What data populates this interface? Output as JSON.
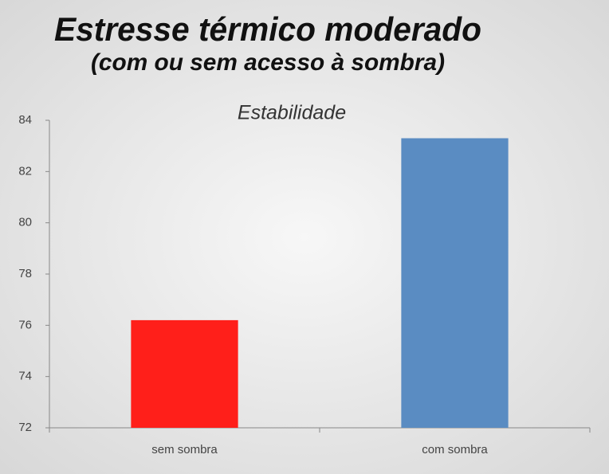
{
  "chart_data": {
    "type": "bar",
    "title": "Estresse térmico moderado",
    "subtitle": "(com ou sem acesso à sombra)",
    "chart_title": "Estabilidade",
    "categories": [
      "sem sombra",
      "com sombra"
    ],
    "values": [
      76.2,
      83.3
    ],
    "colors": [
      "#ff1f1a",
      "#5a8cc2"
    ],
    "ylim": [
      72,
      84
    ],
    "yticks": [
      72,
      74,
      76,
      78,
      80,
      82,
      84
    ],
    "grid": false
  }
}
